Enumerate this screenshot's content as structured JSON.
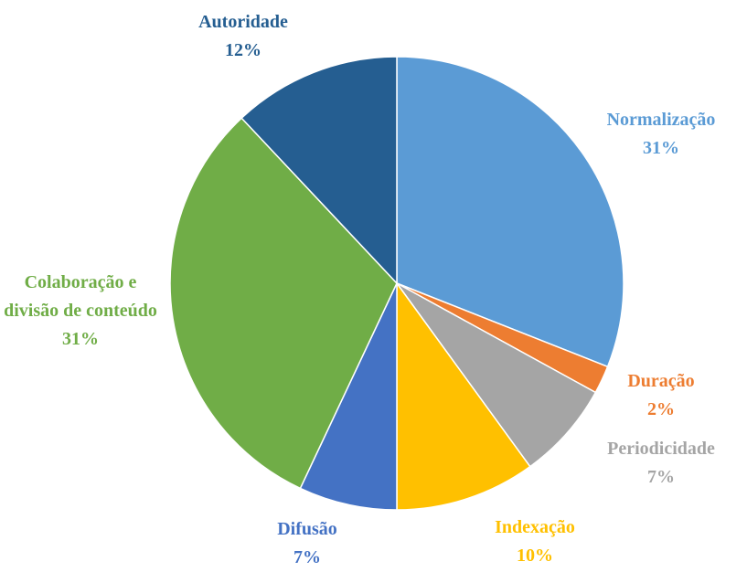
{
  "chart_data": {
    "type": "pie",
    "categories": [
      "Normalização",
      "Duração",
      "Periodicidade",
      "Indexação",
      "Difusão",
      "Colaboração e divisão de conteúdo",
      "Autoridade"
    ],
    "values": [
      31,
      2,
      7,
      10,
      7,
      31,
      12
    ],
    "value_labels": [
      "31%",
      "2%",
      "7%",
      "10%",
      "7%",
      "31%",
      "12%"
    ],
    "colors": [
      "#5b9bd5",
      "#ed7d31",
      "#a5a5a5",
      "#ffc000",
      "#4472c4",
      "#70ad47",
      "#255e91"
    ]
  }
}
